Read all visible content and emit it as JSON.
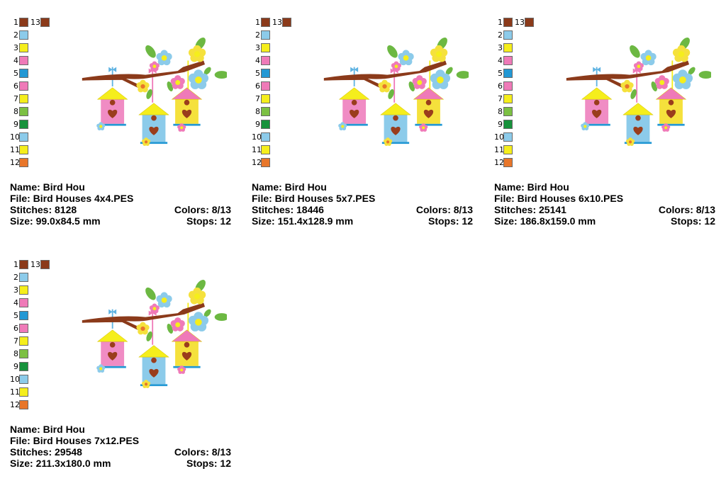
{
  "palette": {
    "extra_color_number": "13",
    "extra_color": "#8b3a1a",
    "colors": [
      {
        "number": "1",
        "color": "#8b3a1a"
      },
      {
        "number": "2",
        "color": "#8ccbea"
      },
      {
        "number": "3",
        "color": "#f5ee1c"
      },
      {
        "number": "4",
        "color": "#ef7ab8"
      },
      {
        "number": "5",
        "color": "#2398d4"
      },
      {
        "number": "6",
        "color": "#ef7ab8"
      },
      {
        "number": "7",
        "color": "#f5ee1c"
      },
      {
        "number": "8",
        "color": "#7cc043"
      },
      {
        "number": "9",
        "color": "#17923c"
      },
      {
        "number": "10",
        "color": "#8ccbea"
      },
      {
        "number": "11",
        "color": "#f5ee1c"
      },
      {
        "number": "12",
        "color": "#e8762a"
      }
    ]
  },
  "designs": [
    {
      "name_label": "Name: Bird Hou",
      "file_label": "File: Bird Houses 4x4.PES",
      "stitches_label": "Stitches: 8128",
      "colors_label": "Colors: 8/13",
      "size_label": "Size: 99.0x84.5 mm",
      "stops_label": "Stops: 12"
    },
    {
      "name_label": "Name: Bird Hou",
      "file_label": "File: Bird Houses 5x7.PES",
      "stitches_label": "Stitches: 18446",
      "colors_label": "Colors: 8/13",
      "size_label": "Size: 151.4x128.9 mm",
      "stops_label": "Stops: 12"
    },
    {
      "name_label": "Name: Bird Hou",
      "file_label": "File: Bird Houses 6x10.PES",
      "stitches_label": "Stitches: 25141",
      "colors_label": "Colors: 8/13",
      "size_label": "Size: 186.8x159.0 mm",
      "stops_label": "Stops: 12"
    },
    {
      "name_label": "Name: Bird Hou",
      "file_label": "File: Bird Houses 7x12.PES",
      "stitches_label": "Stitches: 29548",
      "colors_label": "Colors: 8/13",
      "size_label": "Size: 211.3x180.0 mm",
      "stops_label": "Stops: 12"
    }
  ],
  "design_colors": {
    "branch": "#8b3a1a",
    "house_pink": "#f08cc4",
    "house_blue": "#8ccbea",
    "house_yellow": "#f5e13c",
    "roof_yellow": "#f5ee1c",
    "roof_pink": "#ef7ab8",
    "heart": "#9a3d1c",
    "leaf": "#6cb842",
    "flower_blue": "#8ccbea",
    "flower_pink": "#ef7ab8",
    "flower_yellow": "#f5e13c",
    "flower_center": "#f5ee1c",
    "ribbon_blue": "#5fb3e2",
    "ribbon_pink": "#ef7ab8"
  }
}
